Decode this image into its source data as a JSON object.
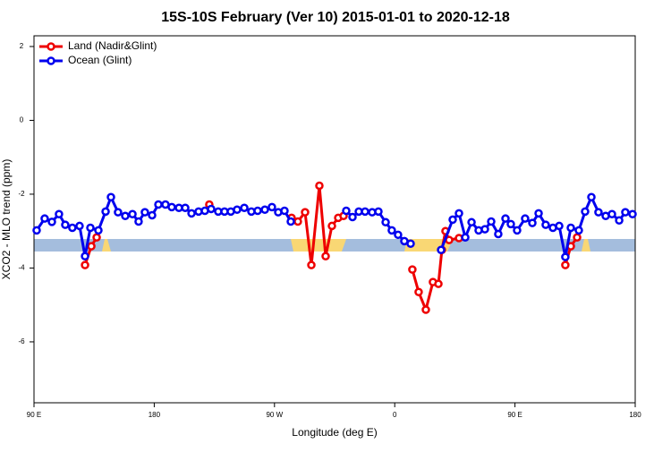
{
  "chart_data": {
    "type": "line",
    "title": "15S-10S February (Ver 10)   2015-01-01 to 2020-12-18",
    "x_label": "Longitude (deg E)",
    "y_label": "XCO2 - MLO trend (ppm)",
    "xlim": [
      90,
      540
    ],
    "ylim": [
      -7.65,
      2.29
    ],
    "xticks": [
      {
        "value": 90,
        "label": "90 E"
      },
      180,
      {
        "value": 270,
        "label": "90 W"
      },
      {
        "value": 360,
        "label": "0"
      },
      {
        "value": 450,
        "label": "90 E"
      },
      {
        "value": 540,
        "label": "180"
      }
    ],
    "yticks": [
      2,
      0,
      -2,
      -4,
      -6
    ],
    "legend": "top-left",
    "series": [
      {
        "name": "Land (Nadir&Glint)",
        "color": "#ee0000",
        "x": [
          128.2,
          132.9,
          136.9,
          null,
          221.2,
          null,
          282.8,
          287.5,
          292.9,
          297.6,
          303.6,
          308.3,
          313.0,
          317.7,
          321.7,
          null,
          373.2,
          377.9,
          383.3,
          388.6,
          392.7,
          395.3,
          398.0,
          400.7,
          408.1,
          null,
          487.7,
          491.8,
          496.5
        ],
        "values": [
          -3.92,
          -3.41,
          -3.17,
          null,
          -2.28,
          null,
          -2.64,
          -2.74,
          -2.49,
          -3.92,
          -1.77,
          -3.68,
          -2.86,
          -2.64,
          -2.59,
          null,
          -4.04,
          -4.65,
          -5.13,
          -4.38,
          -4.43,
          -3.51,
          -3.0,
          -3.24,
          -3.19,
          null,
          -3.92,
          -3.41,
          -3.17
        ]
      },
      {
        "name": "Ocean (Glint)",
        "color": "#0000ee",
        "x": [
          92.0,
          98.0,
          103.4,
          108.7,
          113.4,
          118.7,
          124.1,
          128.2,
          132.2,
          138.2,
          143.6,
          147.6,
          152.9,
          158.3,
          163.7,
          168.3,
          173.0,
          178.4,
          183.1,
          188.4,
          193.1,
          198.5,
          203.2,
          207.9,
          213.2,
          217.9,
          222.6,
          227.9,
          232.6,
          237.3,
          242.0,
          247.4,
          252.7,
          257.4,
          262.8,
          268.1,
          272.8,
          277.5,
          282.2,
          null,
          323.7,
          328.4,
          333.1,
          337.8,
          343.1,
          347.8,
          353.2,
          357.8,
          362.5,
          367.2,
          371.9,
          null,
          394.7,
          403.4,
          408.1,
          412.8,
          417.5,
          422.8,
          427.5,
          432.2,
          437.5,
          442.9,
          446.9,
          451.6,
          457.6,
          463.0,
          467.7,
          473.0,
          478.4,
          483.1,
          487.7,
          491.8,
          497.8,
          502.5,
          507.2,
          512.5,
          517.9,
          522.6,
          528.0,
          532.6,
          538.0
        ],
        "values": [
          -2.98,
          -2.66,
          -2.75,
          -2.54,
          -2.83,
          -2.91,
          -2.86,
          -3.68,
          -2.91,
          -2.98,
          -2.47,
          -2.08,
          -2.49,
          -2.59,
          -2.54,
          -2.74,
          -2.49,
          -2.57,
          -2.28,
          -2.28,
          -2.35,
          -2.37,
          -2.37,
          -2.52,
          -2.47,
          -2.45,
          -2.4,
          -2.47,
          -2.47,
          -2.47,
          -2.42,
          -2.37,
          -2.47,
          -2.45,
          -2.42,
          -2.35,
          -2.49,
          -2.45,
          -2.74,
          null,
          -2.45,
          -2.62,
          -2.47,
          -2.47,
          -2.49,
          -2.47,
          -2.76,
          -2.98,
          -3.1,
          -3.27,
          -3.34,
          null,
          -3.51,
          -2.69,
          -2.52,
          -3.17,
          -2.76,
          -2.98,
          -2.95,
          -2.74,
          -3.08,
          -2.66,
          -2.81,
          -2.98,
          -2.66,
          -2.78,
          -2.52,
          -2.83,
          -2.91,
          -2.86,
          -3.7,
          -2.91,
          -2.98,
          -2.47,
          -2.08,
          -2.49,
          -2.59,
          -2.54,
          -2.71,
          -2.49,
          -2.54
        ]
      }
    ]
  }
}
